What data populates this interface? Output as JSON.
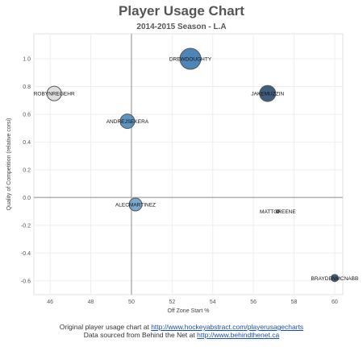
{
  "title": "Player Usage Chart",
  "subtitle": "2014-2015 Season - L.A",
  "chart_data": {
    "type": "scatter",
    "title": "Player Usage Chart",
    "subtitle": "2014-2015 Season - L.A",
    "xlabel": "Off Zone Start %",
    "ylabel": "Quality of Competition (relative corsi)",
    "xlim": [
      45.2,
      60.4
    ],
    "ylim": [
      -0.7,
      1.18
    ],
    "xticks": [
      46,
      48,
      50,
      52,
      54,
      56,
      58,
      60
    ],
    "xtick_labels": [
      "46",
      "48",
      "50",
      "52",
      "54",
      "56",
      "58",
      "60"
    ],
    "yticks": [
      -0.6,
      -0.4,
      -0.2,
      0.0,
      0.2,
      0.4,
      0.6,
      0.8,
      1.0
    ],
    "ytick_labels": [
      "-0.6",
      "-0.4",
      "-0.2",
      "0.0",
      "0.2",
      "0.4",
      "0.6",
      "0.8",
      "1.0"
    ],
    "reference_lines": {
      "x": 50,
      "y": 0
    },
    "grid": true,
    "points": [
      {
        "label": "DREWDOUGHTY",
        "x": 52.9,
        "y": 1.0,
        "size": 13,
        "color": "#3a78b0"
      },
      {
        "label": "JAKEMUZZIN",
        "x": 56.7,
        "y": 0.75,
        "size": 10,
        "color": "#2e4c70"
      },
      {
        "label": "ROBYNREGEHR",
        "x": 46.2,
        "y": 0.75,
        "size": 9,
        "color": "#dcdcdc"
      },
      {
        "label": "ANDREJSEKERA",
        "x": 49.8,
        "y": 0.55,
        "size": 9,
        "color": "#4d86b8"
      },
      {
        "label": "ALECMARTINEZ",
        "x": 50.2,
        "y": -0.05,
        "size": 8,
        "color": "#6e9fc8"
      },
      {
        "label": "MATTGREENE",
        "x": 57.2,
        "y": -0.1,
        "size": 2,
        "color": "#9a9a9a"
      },
      {
        "label": "BRAYDENMCNABB",
        "x": 60.0,
        "y": -0.58,
        "size": 4.5,
        "color": "#2e4c70"
      }
    ]
  },
  "footer": {
    "line1_text": "Original player usage chart at",
    "line1_link": "http://www.hockeyabstract.com/playerusagecharts",
    "line2_text": "Data sourced from Behind the Net at",
    "line2_link": "http://www.behindthenet.ca"
  }
}
